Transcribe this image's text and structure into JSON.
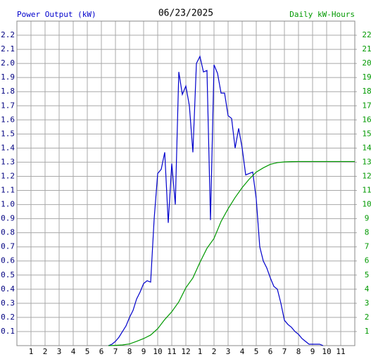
{
  "chart_data": {
    "type": "line",
    "title": "06/23/2025",
    "y_label": "Power Output (kW)",
    "y2_label": "Daily kW-Hours",
    "xlim": [
      0,
      24
    ],
    "xticks": [
      1,
      2,
      3,
      4,
      5,
      6,
      7,
      8,
      9,
      10,
      11,
      12,
      {
        "value": 13,
        "label": "1"
      },
      {
        "value": 14,
        "label": "2"
      },
      {
        "value": 15,
        "label": "3"
      },
      {
        "value": 16,
        "label": "4"
      },
      {
        "value": 17,
        "label": "5"
      },
      {
        "value": 18,
        "label": "6"
      },
      {
        "value": 19,
        "label": "7"
      },
      {
        "value": 20,
        "label": "8"
      },
      {
        "value": 21,
        "label": "9"
      },
      {
        "value": 22,
        "label": "10"
      },
      {
        "value": 23,
        "label": "11"
      }
    ],
    "ylim": [
      0,
      2.3
    ],
    "yticks": [
      0.1,
      0.2,
      0.3,
      0.4,
      0.5,
      0.6,
      0.7,
      0.8,
      0.9,
      {
        "value": 1,
        "label": "1.0"
      },
      1.1,
      1.2,
      1.3,
      1.4,
      1.5,
      1.6,
      1.7,
      1.8,
      1.9,
      {
        "value": 2,
        "label": "2.0"
      },
      2.1,
      2.2
    ],
    "y2lim": [
      0,
      23
    ],
    "y2ticks": [
      1,
      2,
      3,
      4,
      5,
      6,
      7,
      8,
      9,
      10,
      11,
      12,
      13,
      14,
      15,
      16,
      17,
      18,
      19,
      20,
      21,
      22
    ],
    "grid": true,
    "series": [
      {
        "name": "Power Output (kW)",
        "color": "#0000cc",
        "axis": "y",
        "x": [
          6.5,
          6.75,
          7,
          7.25,
          7.5,
          7.75,
          8,
          8.25,
          8.5,
          8.75,
          9,
          9.25,
          9.5,
          9.75,
          10,
          10.25,
          10.5,
          10.75,
          11,
          11.25,
          11.5,
          11.75,
          12,
          12.25,
          12.5,
          12.75,
          13,
          13.25,
          13.5,
          13.75,
          14,
          14.25,
          14.5,
          14.75,
          15,
          15.25,
          15.5,
          15.75,
          16,
          16.25,
          16.5,
          16.75,
          17,
          17.25,
          17.5,
          17.75,
          18,
          18.25,
          18.5,
          18.75,
          19,
          19.25,
          19.5,
          19.75,
          20,
          20.25,
          20.5,
          20.75,
          21,
          21.25,
          21.5,
          21.75
        ],
        "values": [
          0,
          0.01,
          0.03,
          0.06,
          0.1,
          0.14,
          0.2,
          0.25,
          0.33,
          0.38,
          0.44,
          0.46,
          0.45,
          0.9,
          1.22,
          1.25,
          1.37,
          0.87,
          1.29,
          1.0,
          1.94,
          1.78,
          1.84,
          1.7,
          1.37,
          2.0,
          2.05,
          1.94,
          1.95,
          0.89,
          1.99,
          1.93,
          1.79,
          1.79,
          1.63,
          1.61,
          1.4,
          1.54,
          1.4,
          1.21,
          1.22,
          1.23,
          1.04,
          0.7,
          0.6,
          0.55,
          0.48,
          0.42,
          0.4,
          0.3,
          0.18,
          0.15,
          0.13,
          0.1,
          0.08,
          0.05,
          0.03,
          0.01,
          0.01,
          0.01,
          0.01,
          0
        ]
      },
      {
        "name": "Daily kW-Hours",
        "color": "#009900",
        "axis": "y2",
        "x": [
          6.5,
          7,
          7.5,
          8,
          8.5,
          9,
          9.5,
          10,
          10.5,
          11,
          11.5,
          12,
          12.5,
          13,
          13.5,
          14,
          14.5,
          15,
          15.5,
          16,
          16.5,
          17,
          17.5,
          18,
          18.5,
          19,
          19.5,
          20,
          24
        ],
        "values": [
          0,
          0.02,
          0.05,
          0.12,
          0.3,
          0.5,
          0.75,
          1.2,
          1.85,
          2.4,
          3.1,
          4.1,
          4.8,
          5.9,
          6.9,
          7.6,
          8.8,
          9.7,
          10.5,
          11.2,
          11.8,
          12.3,
          12.6,
          12.85,
          12.97,
          13.02,
          13.04,
          13.05,
          13.05
        ]
      }
    ]
  }
}
